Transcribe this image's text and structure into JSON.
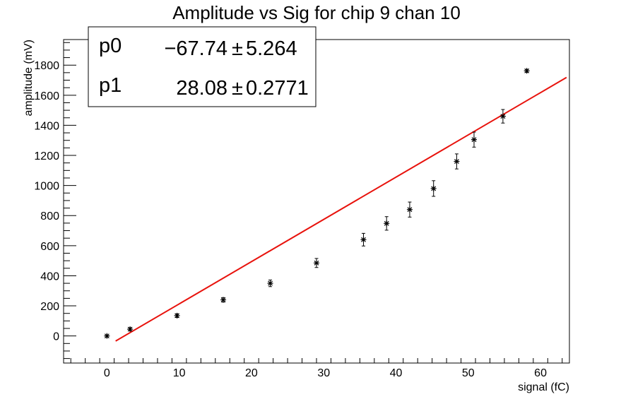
{
  "chart_data": {
    "type": "scatter",
    "title": "Amplitude vs Sig for chip 9 chan 10",
    "xlabel": "signal (fC)",
    "ylabel": "amplitude (mV)",
    "xlim": [
      -6,
      64
    ],
    "ylim": [
      -180,
      1970
    ],
    "x_ticks": [
      0,
      10,
      20,
      30,
      40,
      50,
      60
    ],
    "y_ticks": [
      0,
      200,
      400,
      600,
      800,
      1000,
      1200,
      1400,
      1600,
      1800
    ],
    "grid": false,
    "series": [
      {
        "type": "scatter",
        "marker": "star",
        "color": "#000000",
        "x": [
          0,
          3.2,
          9.7,
          16.1,
          22.6,
          29.0,
          35.5,
          38.7,
          41.9,
          45.2,
          48.4,
          50.8,
          54.8,
          58.1
        ],
        "y": [
          0,
          45,
          135,
          240,
          350,
          485,
          640,
          748,
          840,
          980,
          1160,
          1305,
          1460,
          1762
        ],
        "err": [
          8,
          10,
          12,
          15,
          22,
          30,
          42,
          45,
          50,
          52,
          50,
          50,
          45,
          10
        ]
      },
      {
        "type": "line",
        "color": "#e8120c",
        "x": [
          1.2,
          63.6
        ],
        "y": [
          -34.04,
          1718.15
        ]
      }
    ],
    "fit_box": {
      "rows": [
        {
          "param": "p0",
          "value": "−67.74",
          "pm": "±",
          "error": "5.264"
        },
        {
          "param": "p1",
          "value": "28.08",
          "pm": "±",
          "error": "0.2771"
        }
      ]
    }
  }
}
